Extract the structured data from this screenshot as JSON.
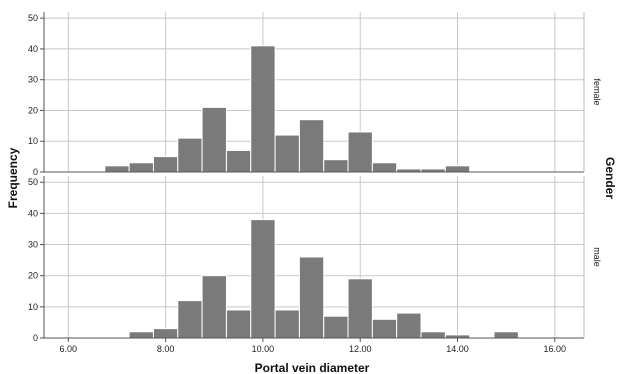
{
  "chart_data": {
    "type": "bar",
    "subtype": "faceted-histogram",
    "xlabel": "Portal vein diameter",
    "ylabel": "Frequency",
    "facet_label": "Gender",
    "xlim": [
      5.5,
      16.6
    ],
    "ylim": [
      0,
      52
    ],
    "x_ticks": [
      6,
      8,
      10,
      12,
      14,
      16
    ],
    "x_tick_labels": [
      "6.00",
      "8.00",
      "10.00",
      "12.00",
      "14.00",
      "16.00"
    ],
    "y_ticks": [
      0,
      10,
      20,
      30,
      40,
      50
    ],
    "y_tick_labels": [
      "0",
      "10",
      "20",
      "30",
      "40",
      "50"
    ],
    "bin_edges": [
      6.75,
      7.25,
      7.75,
      8.25,
      8.75,
      9.25,
      9.75,
      10.25,
      10.75,
      11.25,
      11.75,
      12.25,
      12.75,
      13.25,
      13.75,
      14.25,
      14.75,
      15.25,
      15.75
    ],
    "grid": true,
    "bar_color": "#7a7a7a",
    "series": [
      {
        "name": "female",
        "values": [
          2,
          3,
          5,
          11,
          21,
          7,
          41,
          12,
          17,
          4,
          13,
          3,
          1,
          1,
          2,
          0,
          0,
          0
        ]
      },
      {
        "name": "male",
        "values": [
          0,
          2,
          3,
          12,
          20,
          9,
          38,
          9,
          26,
          7,
          19,
          6,
          8,
          2,
          1,
          0,
          2,
          0
        ]
      }
    ]
  }
}
